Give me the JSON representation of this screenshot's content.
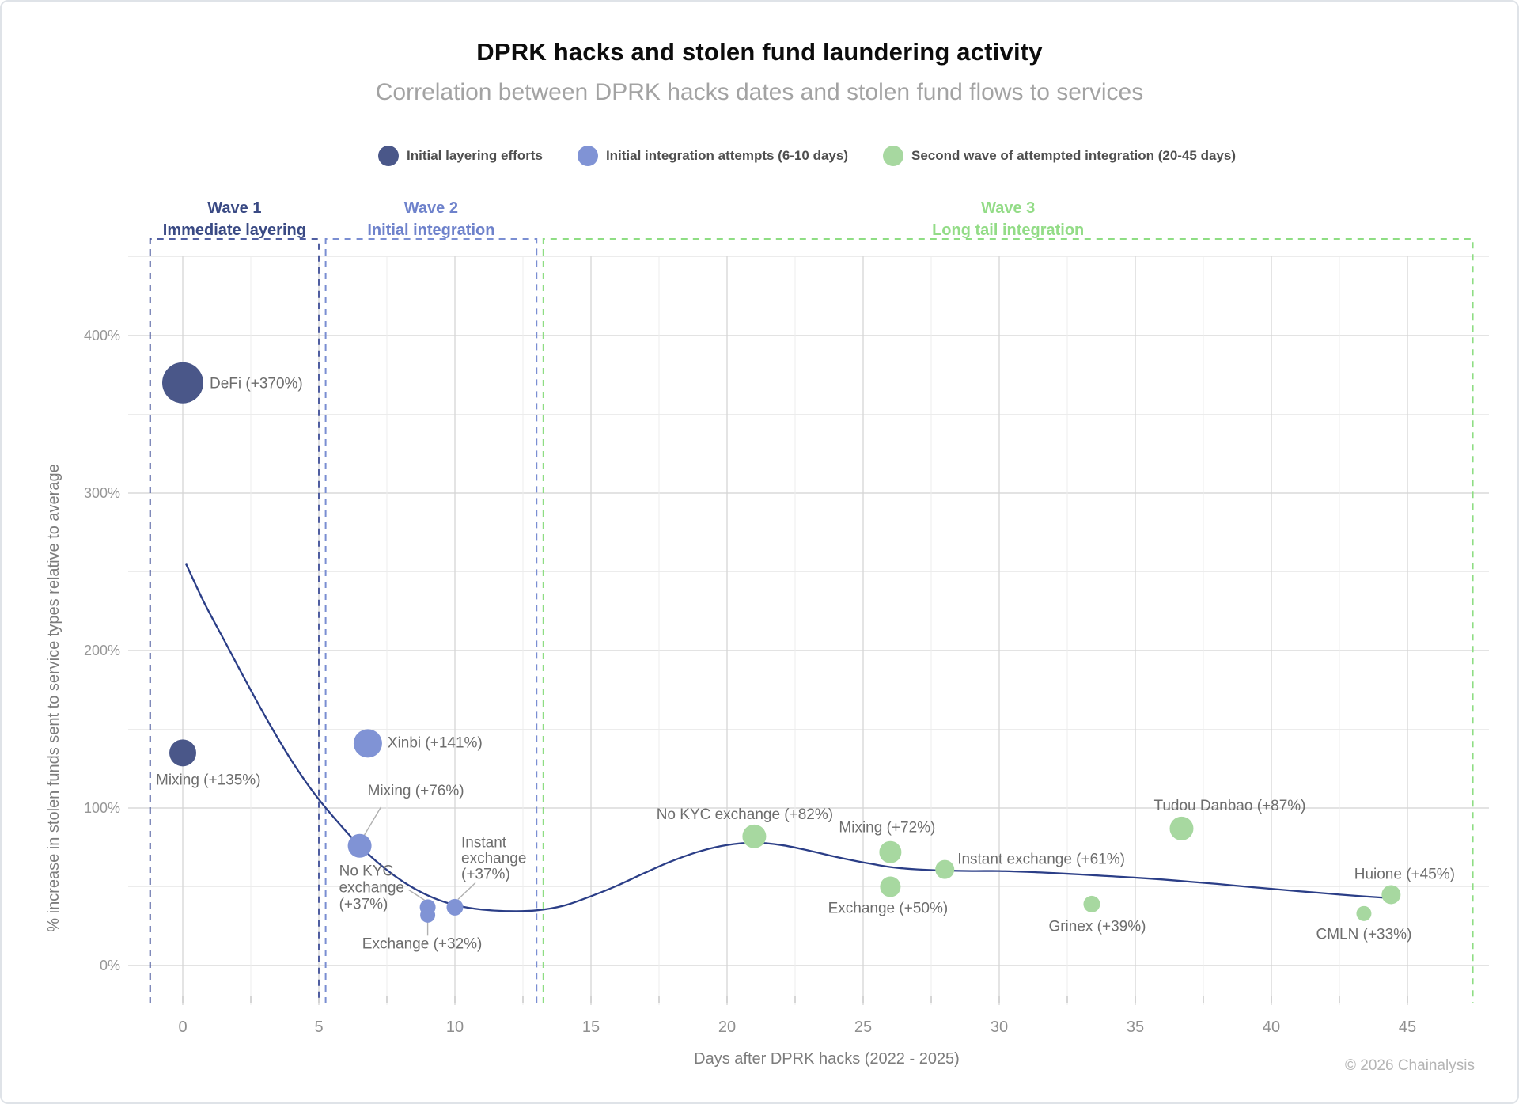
{
  "header": {
    "title": "DPRK hacks and stolen fund laundering activity",
    "subtitle": "Correlation between DPRK hacks dates and stolen fund flows to services"
  },
  "legend": {
    "items": [
      {
        "label": "Initial layering efforts",
        "color": "#4a5789"
      },
      {
        "label": "Initial integration attempts (6-10 days)",
        "color": "#8093d5"
      },
      {
        "label": "Second wave of attempted integration (20-45 days)",
        "color": "#a7d8a0"
      }
    ]
  },
  "chart_data": {
    "type": "scatter",
    "title": "DPRK hacks and stolen fund laundering activity",
    "xlabel": "Days after DPRK hacks (2022 - 2025)",
    "ylabel": "% increase in stolen funds sent to service types relative to average",
    "xlim": [
      -2.7,
      47.9
    ],
    "ylim": [
      -26,
      451
    ],
    "x_major_ticks": [
      0,
      5,
      10,
      15,
      20,
      25,
      30,
      35,
      40,
      45
    ],
    "x_minor_step": 2.5,
    "y_major_ticks": [
      0,
      100,
      200,
      300,
      400
    ],
    "y_tick_suffix": "%",
    "y_minor_step": 50,
    "grid": true,
    "waves": [
      {
        "label": "Wave 1",
        "sublabel": "Immediate layering",
        "day_start": -1.2,
        "day_end": 5.0,
        "text_color": "#3a4a84",
        "line_color": "#4f5da0"
      },
      {
        "label": "Wave 2",
        "sublabel": "Initial integration",
        "day_start": 5.25,
        "day_end": 13.0,
        "text_color": "#6e82cb",
        "line_color": "#7a8ed2"
      },
      {
        "label": "Wave 3",
        "sublabel": "Long tail integration",
        "day_start": 13.25,
        "day_end": 47.4,
        "text_color": "#93dc87",
        "line_color": "#8edd83"
      }
    ],
    "series": [
      {
        "name": "Initial layering efforts",
        "color": "#4a5789",
        "points": [
          {
            "service": "DeFi",
            "day": 0,
            "pct": 370,
            "r": 26,
            "label_lines": [
              "DeFi (+370%)"
            ],
            "anchor": "start",
            "dx": 34,
            "dy": 7
          },
          {
            "service": "Mixing",
            "day": 0,
            "pct": 135,
            "r": 17,
            "label_lines": [
              "Mixing (+135%)"
            ],
            "anchor": "start",
            "dx": -34,
            "dy": 40
          }
        ]
      },
      {
        "name": "Initial integration attempts (6-10 days)",
        "color": "#8093d5",
        "points": [
          {
            "service": "Xinbi",
            "day": 6.8,
            "pct": 141,
            "r": 18,
            "label_lines": [
              "Xinbi (+141%)"
            ],
            "anchor": "start",
            "dx": 25,
            "dy": 5
          },
          {
            "service": "Mixing",
            "day": 6.5,
            "pct": 76,
            "r": 15,
            "label_lines": [
              "Mixing (+76%)"
            ],
            "anchor": "start",
            "dx": 10,
            "dy": -64,
            "leader": [
              27,
              -49,
              2,
              -7
            ]
          },
          {
            "service": "No KYC exchange",
            "day": 9.0,
            "pct": 37,
            "r": 10,
            "label_lines": [
              "No KYC",
              "exchange",
              "(+37%)"
            ],
            "anchor": "start",
            "dx": -112,
            "dy": -40,
            "lh": 21,
            "leader": [
              -24,
              -22,
              -4,
              -9
            ]
          },
          {
            "service": "Exchange",
            "day": 9.0,
            "pct": 32,
            "r": 9.5,
            "label_lines": [
              "Exchange (+32%)"
            ],
            "anchor": "middle",
            "dx": -7,
            "dy": 42,
            "leader": [
              0,
              7,
              0,
              26
            ]
          },
          {
            "service": "Instant exchange",
            "day": 10.0,
            "pct": 37,
            "r": 10.5,
            "label_lines": [
              "Instant",
              "exchange",
              "(+37%)"
            ],
            "anchor": "start",
            "dx": 8,
            "dy": -76,
            "lh": 20,
            "leader": [
              26,
              -31,
              4,
              -10
            ]
          }
        ]
      },
      {
        "name": "Second wave of attempted integration (20-45 days)",
        "color": "#a7d8a0",
        "points": [
          {
            "service": "No KYC exchange",
            "day": 21.0,
            "pct": 82,
            "r": 15,
            "label_lines": [
              "No KYC exchange (+82%)"
            ],
            "anchor": "middle",
            "dx": -12,
            "dy": -22
          },
          {
            "service": "Mixing",
            "day": 26.0,
            "pct": 72,
            "r": 14,
            "label_lines": [
              "Mixing (+72%)"
            ],
            "anchor": "middle",
            "dx": -4,
            "dy": -25
          },
          {
            "service": "Exchange",
            "day": 26.0,
            "pct": 50,
            "r": 13,
            "label_lines": [
              "Exchange (+50%)"
            ],
            "anchor": "middle",
            "dx": -3,
            "dy": 33
          },
          {
            "service": "Instant exchange",
            "day": 28.0,
            "pct": 61,
            "r": 12,
            "label_lines": [
              "Instant exchange (+61%)"
            ],
            "anchor": "start",
            "dx": 16,
            "dy": -7
          },
          {
            "service": "Grinex",
            "day": 33.4,
            "pct": 39,
            "r": 10.5,
            "label_lines": [
              "Grinex (+39%)"
            ],
            "anchor": "middle",
            "dx": 7,
            "dy": 34
          },
          {
            "service": "Tudou Danbao",
            "day": 36.7,
            "pct": 87,
            "r": 15,
            "label_lines": [
              "Tudou Danbao (+87%)"
            ],
            "anchor": "middle",
            "dx": 61,
            "dy": -23
          },
          {
            "service": "Huione",
            "day": 44.4,
            "pct": 45,
            "r": 12,
            "label_lines": [
              "Huione (+45%)"
            ],
            "anchor": "middle",
            "dx": 17,
            "dy": -20
          },
          {
            "service": "CMLN",
            "day": 43.4,
            "pct": 33,
            "r": 9.5,
            "label_lines": [
              "CMLN (+33%)"
            ],
            "anchor": "middle",
            "dx": 0,
            "dy": 32
          }
        ]
      }
    ],
    "trend": {
      "color": "#2b3e87",
      "points": [
        [
          0.12,
          255
        ],
        [
          0.8,
          230
        ],
        [
          1.6,
          204
        ],
        [
          2.4,
          178
        ],
        [
          3.2,
          153
        ],
        [
          4,
          130
        ],
        [
          4.8,
          110
        ],
        [
          5.6,
          93
        ],
        [
          6.5,
          76
        ],
        [
          7.4,
          62
        ],
        [
          8.3,
          51
        ],
        [
          9.2,
          43
        ],
        [
          10.1,
          38
        ],
        [
          11,
          35.5
        ],
        [
          12,
          34.5
        ],
        [
          13,
          35
        ],
        [
          14,
          38
        ],
        [
          15,
          44
        ],
        [
          16,
          51
        ],
        [
          17,
          59
        ],
        [
          18,
          66.5
        ],
        [
          19,
          72.5
        ],
        [
          20,
          76.5
        ],
        [
          21,
          78
        ],
        [
          22,
          76.5
        ],
        [
          23,
          73
        ],
        [
          24,
          69
        ],
        [
          25,
          65.5
        ],
        [
          26,
          62.5
        ],
        [
          27,
          61
        ],
        [
          28,
          60.3
        ],
        [
          29,
          60
        ],
        [
          30,
          60
        ],
        [
          31,
          59.5
        ],
        [
          32,
          58.7
        ],
        [
          33,
          57.8
        ],
        [
          34,
          56.8
        ],
        [
          35,
          55.8
        ],
        [
          36,
          54.6
        ],
        [
          37,
          53.2
        ],
        [
          38,
          51.8
        ],
        [
          39,
          50.2
        ],
        [
          40,
          48.7
        ],
        [
          41,
          47.2
        ],
        [
          42,
          45.8
        ],
        [
          43,
          44.4
        ],
        [
          44,
          43.2
        ],
        [
          44.6,
          42.6
        ]
      ]
    }
  },
  "footer": {
    "copyright": "© 2026 Chainalysis"
  }
}
